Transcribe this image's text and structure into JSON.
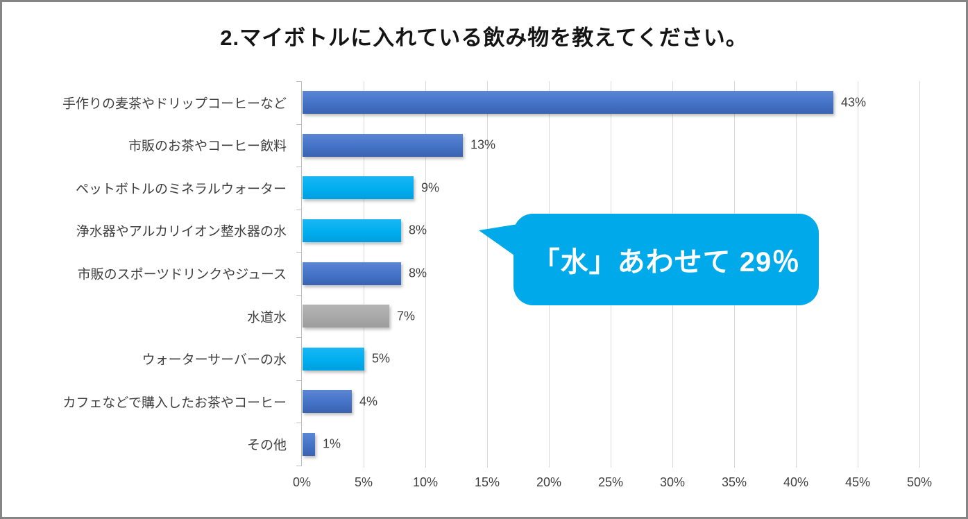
{
  "title": "2.マイボトルに入れている飲み物を教えてください。",
  "colors": {
    "bar_blue": "#4472C4",
    "bar_cyan": "#00AEEF",
    "bar_gray": "#A8A8A8",
    "callout_bg": "#00A9EA",
    "callout_text": "#FFFFFF",
    "gridline": "#D9D9D9",
    "axis_line": "#BFBFBF",
    "label_text": "#3F3F3F"
  },
  "chart_data": {
    "type": "bar",
    "orientation": "horizontal",
    "title": "2.マイボトルに入れている飲み物を教えてください。",
    "categories": [
      "手作りの麦茶やドリップコーヒーなど",
      "市販のお茶やコーヒー飲料",
      "ペットボトルのミネラルウォーター",
      "浄水器やアルカリイオン整水器の水",
      "市販のスポーツドリンクやジュース",
      "水道水",
      "ウォーターサーバーの水",
      "カフェなどで購入したお茶やコーヒー",
      "その他"
    ],
    "values": [
      43,
      13,
      9,
      8,
      8,
      7,
      5,
      4,
      1
    ],
    "value_labels": [
      "43%",
      "13%",
      "9%",
      "8%",
      "8%",
      "7%",
      "5%",
      "4%",
      "1%"
    ],
    "bar_colors": [
      "blue",
      "blue",
      "cyan",
      "cyan",
      "blue",
      "gray",
      "cyan",
      "blue",
      "blue"
    ],
    "x_ticks": [
      "0%",
      "5%",
      "10%",
      "15%",
      "20%",
      "25%",
      "30%",
      "35%",
      "40%",
      "45%",
      "50%"
    ],
    "xlim": [
      0,
      50
    ],
    "grid": true,
    "legend": "none",
    "annotation": {
      "text": "「水」あわせて 29％"
    }
  }
}
